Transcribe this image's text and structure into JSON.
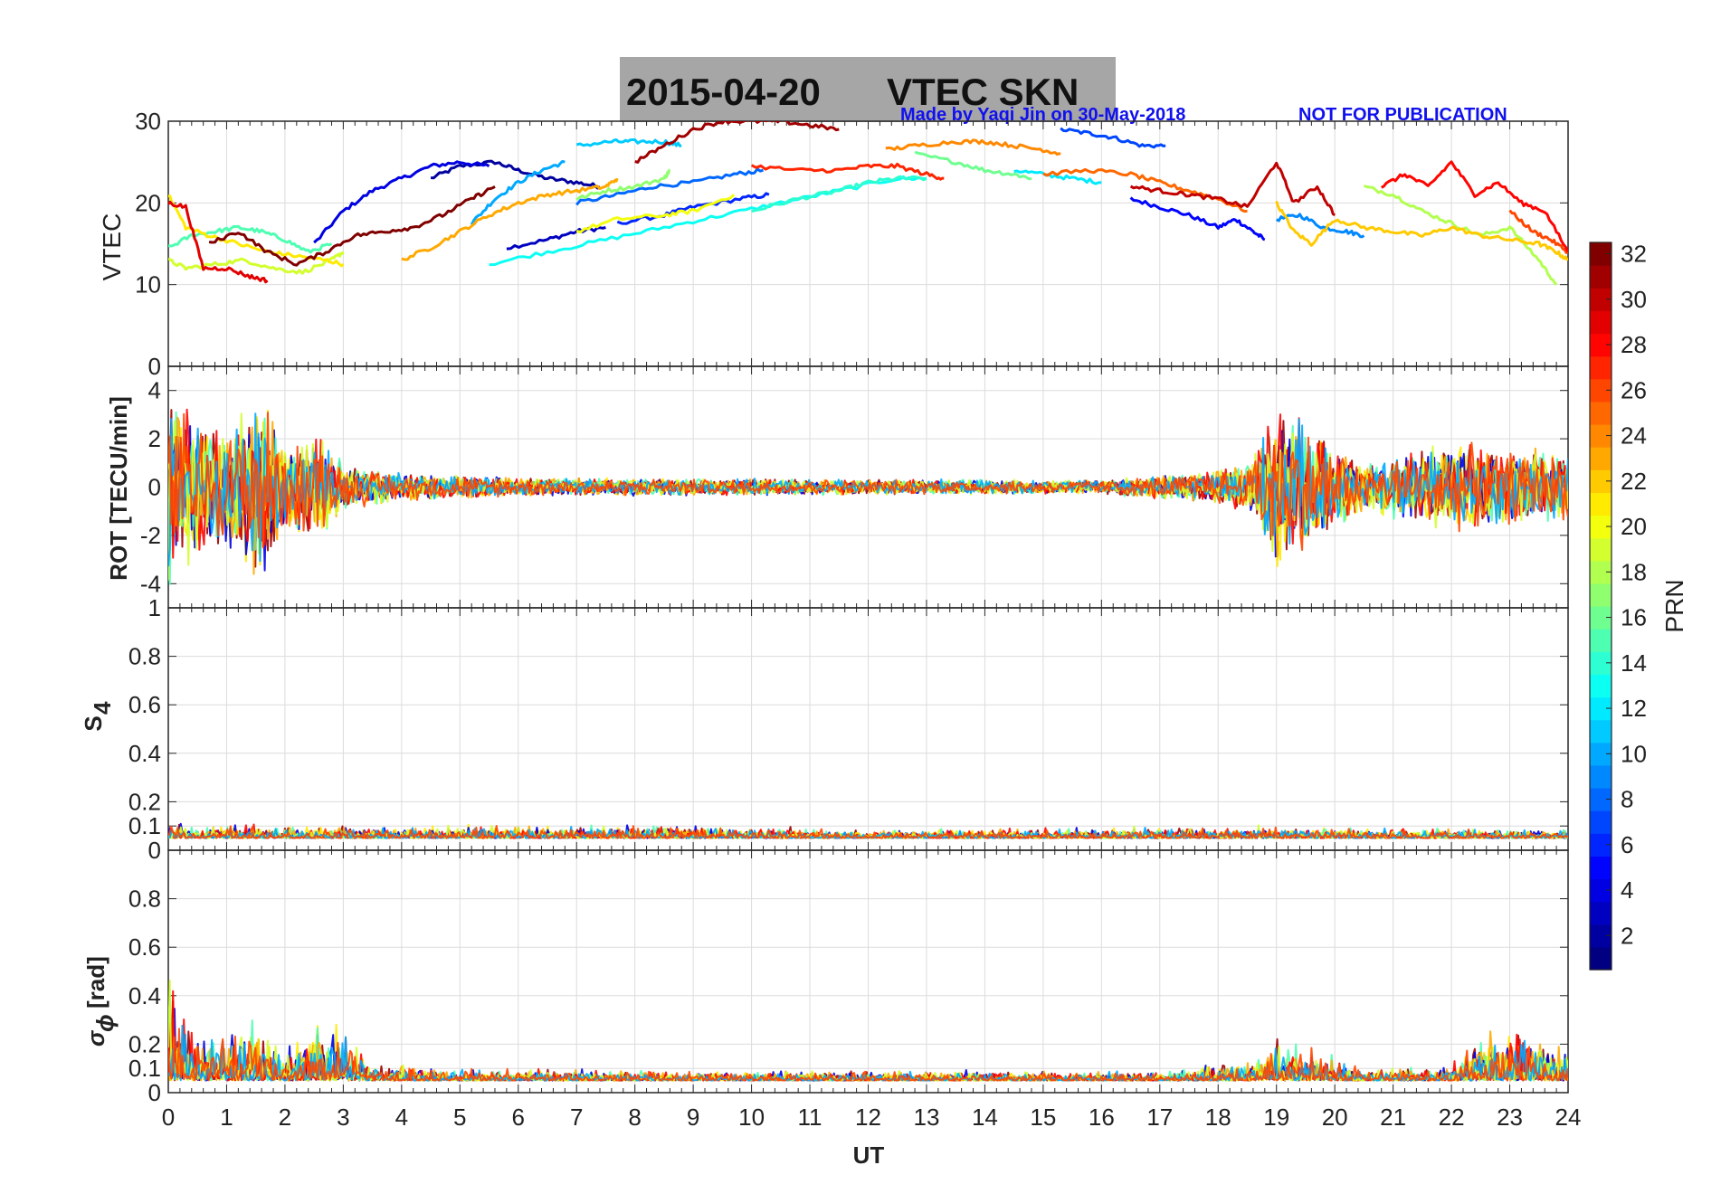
{
  "figure": {
    "title_date": "2015-04-20",
    "title_name": "VTEC  SKN",
    "credit": "Made by Yaqi Jin on 30-May-2018",
    "notice": "NOT FOR PUBLICATION",
    "colors": {
      "title_box": "#a6a6a6",
      "note_text": "#1010ee",
      "grid": "#dcdcdc"
    }
  },
  "chart_data": [
    {
      "type": "line",
      "panel": "vtec",
      "ylabel": "VTEC",
      "xlim": [
        0,
        24
      ],
      "ylim": [
        0,
        30
      ],
      "yticks": [
        0,
        10,
        20,
        30
      ],
      "grid": true,
      "series": [
        {
          "prn": 2,
          "x": [
            4.5,
            5.0,
            5.6,
            6.0,
            6.5,
            7.0,
            7.4
          ],
          "y": [
            23,
            24.5,
            25,
            24,
            23,
            22.5,
            22
          ]
        },
        {
          "prn": 3,
          "x": [
            5.8,
            6.5,
            7.0,
            7.5
          ],
          "y": [
            14.5,
            15.5,
            16.5,
            17
          ]
        },
        {
          "prn": 4,
          "x": [
            2.5,
            3.0,
            3.5,
            4.0,
            4.5,
            5.0,
            5.5
          ],
          "y": [
            15,
            19,
            21.5,
            23,
            24.5,
            25,
            24.5
          ]
        },
        {
          "prn": 5,
          "x": [
            16.5,
            17.0,
            17.5,
            18.0,
            18.3,
            18.6,
            18.8
          ],
          "y": [
            20.5,
            19.5,
            18.5,
            17,
            18,
            16.5,
            15.5
          ]
        },
        {
          "prn": 6,
          "x": [
            7.7,
            8.5,
            9.0,
            9.8,
            10.3
          ],
          "y": [
            17.5,
            18.5,
            19.5,
            20.5,
            21
          ]
        },
        {
          "prn": 7,
          "x": [
            15.3,
            15.8,
            16.2,
            16.7,
            17.1
          ],
          "y": [
            29,
            28.5,
            28,
            27,
            27
          ]
        },
        {
          "prn": 8,
          "x": [
            7.0,
            7.7,
            8.3,
            9.0,
            9.7,
            10.2
          ],
          "y": [
            20,
            21,
            22,
            22.5,
            23.5,
            24
          ]
        },
        {
          "prn": 9,
          "x": [
            19.0,
            19.4,
            19.8,
            20.2,
            20.5
          ],
          "y": [
            18,
            18.5,
            17,
            16.5,
            16
          ]
        },
        {
          "prn": 10,
          "x": [
            5.2,
            5.6,
            6.0,
            6.4,
            6.8
          ],
          "y": [
            17.5,
            20.5,
            22.5,
            24,
            25
          ]
        },
        {
          "prn": 11,
          "x": [
            7.0,
            7.6,
            8.0,
            8.5,
            8.8
          ],
          "y": [
            27,
            27.5,
            27.5,
            27.5,
            27
          ]
        },
        {
          "prn": 12,
          "x": [
            14.5,
            15.0,
            15.5,
            16.0
          ],
          "y": [
            24,
            23.5,
            23,
            22.5
          ]
        },
        {
          "prn": 13,
          "x": [
            5.5,
            6.5,
            7.5,
            8.5,
            9.5,
            10.5,
            11.5,
            12.5,
            13.0
          ],
          "y": [
            12.5,
            14,
            15.5,
            17,
            18.5,
            20,
            21.5,
            23,
            23
          ]
        },
        {
          "prn": 14,
          "x": [
            10.0,
            10.8,
            11.5,
            12.0,
            12.5,
            13.0
          ],
          "y": [
            19,
            20.5,
            21.5,
            22.5,
            23,
            23
          ]
        },
        {
          "prn": 15,
          "x": [
            0.0,
            0.4,
            0.8,
            1.2,
            1.6,
            2.0,
            2.4,
            2.8
          ],
          "y": [
            14.5,
            16,
            16.5,
            17,
            16.5,
            15.5,
            14,
            15
          ]
        },
        {
          "prn": 16,
          "x": [
            12.8,
            13.5,
            14.0,
            14.5,
            14.8
          ],
          "y": [
            26,
            25,
            24,
            23.5,
            23
          ]
        },
        {
          "prn": 17,
          "x": [
            7.0,
            7.5,
            8.0,
            8.5,
            8.6
          ],
          "y": [
            20.5,
            21.5,
            22,
            23,
            24
          ]
        },
        {
          "prn": 18,
          "x": [
            20.5,
            21.0,
            21.5,
            22.0,
            22.5,
            23.0,
            23.5,
            23.8
          ],
          "y": [
            22,
            21,
            19,
            17.5,
            16,
            17,
            13,
            10
          ]
        },
        {
          "prn": 19,
          "x": [
            0.0,
            0.3,
            0.8,
            1.3,
            1.8,
            2.3,
            2.8,
            3.0
          ],
          "y": [
            13,
            12,
            12.5,
            13,
            12,
            11.5,
            13,
            14
          ]
        },
        {
          "prn": 20,
          "x": [
            7.0,
            7.7,
            8.5,
            9.0,
            9.7
          ],
          "y": [
            16.5,
            18,
            18.5,
            19,
            21
          ]
        },
        {
          "prn": 21,
          "x": [
            0.0,
            0.3,
            0.7,
            1.2,
            1.7,
            2.2,
            2.7,
            3.0
          ],
          "y": [
            21,
            17,
            16,
            15,
            14,
            13.5,
            13,
            12.5
          ]
        },
        {
          "prn": 22,
          "x": [
            19.0,
            19.3,
            19.6,
            20.0,
            20.5,
            21.0,
            21.5,
            22.0,
            22.5,
            23.0,
            23.5,
            23.8,
            24.0
          ],
          "y": [
            20,
            16.5,
            15,
            18,
            17,
            16.5,
            16,
            17,
            16,
            15.5,
            15,
            14,
            13
          ]
        },
        {
          "prn": 23,
          "x": [
            4.0,
            4.5,
            5.0,
            5.5,
            6.0,
            6.5,
            7.0,
            7.5,
            7.7
          ],
          "y": [
            13,
            14.5,
            16.5,
            18.5,
            20,
            21,
            21.5,
            22,
            23
          ]
        },
        {
          "prn": 24,
          "x": [
            12.3,
            12.8,
            13.5,
            14.0,
            14.5,
            15.0,
            15.3
          ],
          "y": [
            26.5,
            27,
            27.5,
            27.5,
            27,
            26.5,
            26
          ]
        },
        {
          "prn": 25,
          "x": [
            15.0,
            15.8,
            16.5,
            17.0,
            17.5,
            18.0,
            18.5
          ],
          "y": [
            23.5,
            24,
            23.5,
            22.5,
            21.5,
            20.5,
            19
          ]
        },
        {
          "prn": 26,
          "x": [
            23.0,
            23.4,
            23.7,
            24.0
          ],
          "y": [
            19,
            16.5,
            15.5,
            14
          ]
        },
        {
          "prn": 27,
          "x": [
            10.0,
            10.8,
            11.5,
            12.0,
            12.5,
            13.0,
            13.3
          ],
          "y": [
            24.5,
            24,
            24,
            24.5,
            24.5,
            23.5,
            23
          ]
        },
        {
          "prn": 28,
          "x": [
            20.8,
            21.2,
            21.6,
            22.0,
            22.4,
            22.8,
            23.2,
            23.6,
            24.0
          ],
          "y": [
            22,
            23.5,
            22,
            25,
            21,
            22.5,
            20,
            19,
            14
          ]
        },
        {
          "prn": 29,
          "x": [
            0.0,
            0.3,
            0.6,
            1.0,
            1.4,
            1.7
          ],
          "y": [
            20,
            19.5,
            12,
            12,
            11,
            10.5
          ]
        },
        {
          "prn": 30,
          "x": [
            16.5,
            17.0,
            17.5,
            18.0,
            18.5,
            19.0,
            19.3,
            19.7,
            20.0
          ],
          "y": [
            22,
            21.5,
            21,
            20.5,
            19.5,
            25,
            20,
            22,
            18.5
          ]
        },
        {
          "prn": 31,
          "x": [
            8.0,
            8.5,
            9.0,
            9.5,
            10.0,
            10.5,
            11.0,
            11.5
          ],
          "y": [
            25,
            27,
            29,
            30,
            30,
            30,
            29.5,
            29
          ]
        },
        {
          "prn": 32,
          "x": [
            0.7,
            1.2,
            1.7,
            2.2,
            2.7,
            3.2,
            3.7,
            4.2,
            4.7,
            5.2,
            5.6
          ],
          "y": [
            15,
            16.5,
            14,
            12.5,
            14,
            16,
            16.5,
            17,
            18.5,
            20.5,
            22
          ]
        }
      ]
    },
    {
      "type": "line",
      "panel": "rot",
      "ylabel": "ROT [TECU/min]",
      "xlim": [
        0,
        24
      ],
      "ylim": [
        -5,
        5
      ],
      "yticks": [
        -4,
        -2,
        0,
        2,
        4
      ],
      "grid": true,
      "envelope": [
        {
          "x": 0.0,
          "amp": 4.5
        },
        {
          "x": 0.5,
          "amp": 3.0
        },
        {
          "x": 1.0,
          "amp": 2.5
        },
        {
          "x": 1.5,
          "amp": 4.5
        },
        {
          "x": 2.0,
          "amp": 2.0
        },
        {
          "x": 2.5,
          "amp": 2.5
        },
        {
          "x": 3.0,
          "amp": 1.0
        },
        {
          "x": 4.0,
          "amp": 0.6
        },
        {
          "x": 6.0,
          "amp": 0.4
        },
        {
          "x": 16.0,
          "amp": 0.3
        },
        {
          "x": 17.5,
          "amp": 0.6
        },
        {
          "x": 18.5,
          "amp": 1.0
        },
        {
          "x": 19.0,
          "amp": 3.5
        },
        {
          "x": 19.7,
          "amp": 2.5
        },
        {
          "x": 20.5,
          "amp": 1.0
        },
        {
          "x": 22.0,
          "amp": 2.0
        },
        {
          "x": 22.5,
          "amp": 1.8
        },
        {
          "x": 24.0,
          "amp": 1.5
        }
      ]
    },
    {
      "type": "line",
      "panel": "s4",
      "ylabel": "S4",
      "xlim": [
        0,
        24
      ],
      "ylim": [
        0,
        1
      ],
      "yticks": [
        0,
        0.1,
        0.2,
        0.4,
        0.6,
        0.8,
        1
      ],
      "grid": true,
      "baseline": 0.05,
      "envelope": [
        {
          "x": 0.0,
          "amp": 0.05
        },
        {
          "x": 3.0,
          "amp": 0.04
        },
        {
          "x": 8.5,
          "amp": 0.05
        },
        {
          "x": 12.0,
          "amp": 0.03
        },
        {
          "x": 19.0,
          "amp": 0.04
        },
        {
          "x": 24.0,
          "amp": 0.03
        }
      ]
    },
    {
      "type": "line",
      "panel": "sigma",
      "ylabel": "[rad]",
      "xlim": [
        0,
        24
      ],
      "ylim": [
        0,
        1
      ],
      "yticks": [
        0,
        0.1,
        0.2,
        0.4,
        0.6,
        0.8
      ],
      "xticks": [
        0,
        1,
        2,
        3,
        4,
        5,
        6,
        7,
        8,
        9,
        10,
        11,
        12,
        13,
        14,
        15,
        16,
        17,
        18,
        19,
        20,
        21,
        22,
        23,
        24
      ],
      "xlabel": "UT",
      "grid": true,
      "baseline": 0.05,
      "envelope": [
        {
          "x": 0.0,
          "amp": 0.5
        },
        {
          "x": 0.5,
          "amp": 0.2
        },
        {
          "x": 1.5,
          "amp": 0.2
        },
        {
          "x": 2.0,
          "amp": 0.12
        },
        {
          "x": 2.8,
          "amp": 0.25
        },
        {
          "x": 3.5,
          "amp": 0.06
        },
        {
          "x": 5.0,
          "amp": 0.04
        },
        {
          "x": 17.0,
          "amp": 0.03
        },
        {
          "x": 18.5,
          "amp": 0.07
        },
        {
          "x": 19.0,
          "amp": 0.15
        },
        {
          "x": 19.5,
          "amp": 0.12
        },
        {
          "x": 20.5,
          "amp": 0.04
        },
        {
          "x": 22.0,
          "amp": 0.06
        },
        {
          "x": 22.5,
          "amp": 0.18
        },
        {
          "x": 23.0,
          "amp": 0.2
        },
        {
          "x": 24.0,
          "amp": 0.12
        }
      ]
    },
    {
      "type": "colorbar",
      "label": "PRN",
      "range": [
        1,
        32
      ],
      "ticks": [
        2,
        4,
        6,
        8,
        10,
        12,
        14,
        16,
        18,
        20,
        22,
        24,
        26,
        28,
        30,
        32
      ],
      "colormap": "jet"
    }
  ]
}
